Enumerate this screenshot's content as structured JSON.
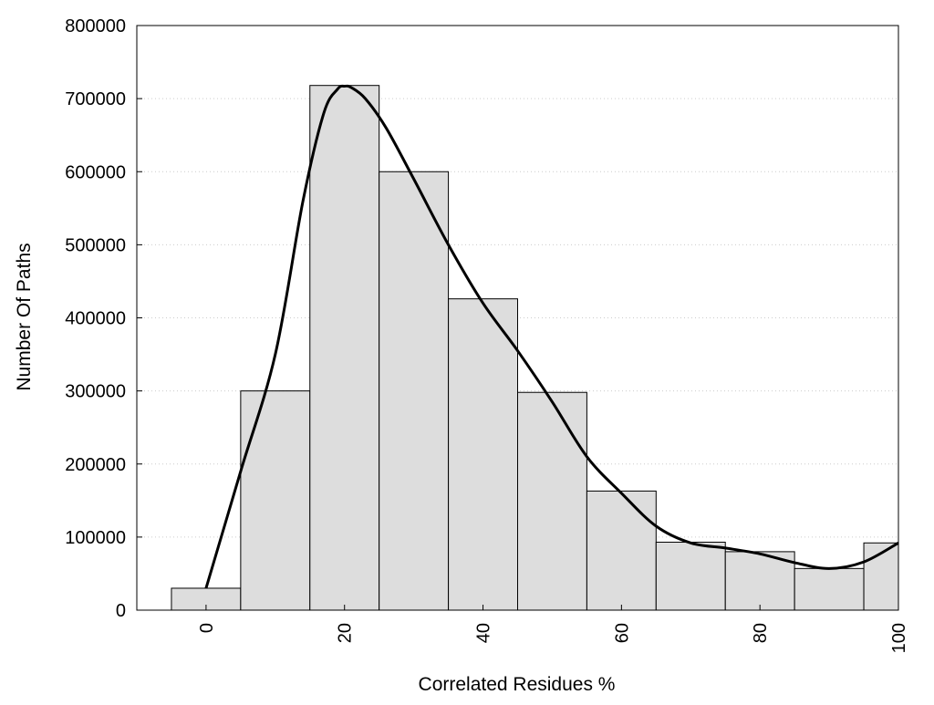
{
  "chart_data": {
    "type": "bar",
    "title": "",
    "xlabel": "Correlated Residues %",
    "ylabel": "Number Of Paths",
    "x": [
      0,
      10,
      20,
      30,
      40,
      50,
      60,
      70,
      80,
      90,
      100
    ],
    "values": [
      30000,
      300000,
      718000,
      600000,
      426000,
      298000,
      163000,
      93000,
      80000,
      57000,
      92000
    ],
    "bin_width": 10,
    "xlim": [
      -10,
      100
    ],
    "ylim": [
      0,
      800000
    ],
    "x_ticks": [
      0,
      20,
      40,
      60,
      80,
      100
    ],
    "x_tick_labels": [
      "0",
      "20",
      "40",
      "60",
      "80",
      "100"
    ],
    "y_ticks": [
      0,
      100000,
      200000,
      300000,
      400000,
      500000,
      600000,
      700000,
      800000
    ],
    "y_tick_labels": [
      "0",
      "100000",
      "200000",
      "300000",
      "400000",
      "500000",
      "600000",
      "700000",
      "800000"
    ],
    "grid": "horizontal-dotted",
    "legend": "none",
    "curve": {
      "x": [
        0,
        5,
        10,
        14,
        17,
        19,
        20,
        21,
        23,
        26,
        30,
        35,
        40,
        45,
        50,
        55,
        60,
        65,
        70,
        75,
        80,
        85,
        90,
        95,
        100
      ],
      "values": [
        30000,
        190000,
        350000,
        560000,
        680000,
        713000,
        717000,
        715000,
        700000,
        660000,
        590000,
        500000,
        420000,
        355000,
        285000,
        210000,
        160000,
        115000,
        92000,
        85000,
        77000,
        65000,
        57000,
        66000,
        92000
      ]
    },
    "colors": {
      "bar_fill": "#dddddd",
      "bar_stroke": "#000000",
      "curve": "#000000",
      "grid": "#cccccc"
    }
  }
}
